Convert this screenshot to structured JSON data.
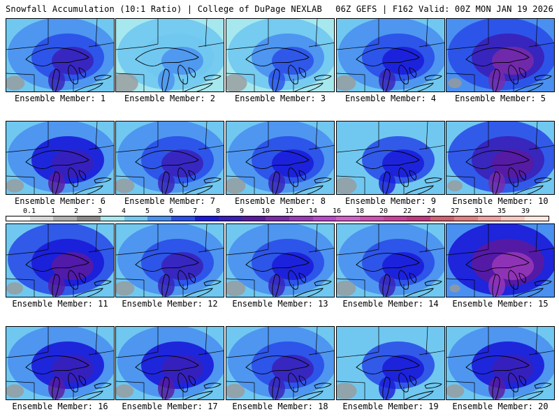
{
  "header": {
    "title": "Snowfall Accumulation (10:1 Ratio) | College of DuPage NEXLAB",
    "run_info": "06Z GEFS | F162 Valid: 00Z MON JAN 19 2026"
  },
  "members": [
    {
      "label": "Ensemble Member: 1",
      "intensity": 0.55
    },
    {
      "label": "Ensemble Member: 2",
      "intensity": 0.3
    },
    {
      "label": "Ensemble Member: 3",
      "intensity": 0.4
    },
    {
      "label": "Ensemble Member: 4",
      "intensity": 0.5
    },
    {
      "label": "Ensemble Member: 5",
      "intensity": 0.75
    },
    {
      "label": "Ensemble Member: 6",
      "intensity": 0.6
    },
    {
      "label": "Ensemble Member: 7",
      "intensity": 0.55
    },
    {
      "label": "Ensemble Member: 8",
      "intensity": 0.5
    },
    {
      "label": "Ensemble Member: 9",
      "intensity": 0.45
    },
    {
      "label": "Ensemble Member: 10",
      "intensity": 0.7
    },
    {
      "label": "Ensemble Member: 11",
      "intensity": 0.65
    },
    {
      "label": "Ensemble Member: 12",
      "intensity": 0.55
    },
    {
      "label": "Ensemble Member: 13",
      "intensity": 0.5
    },
    {
      "label": "Ensemble Member: 14",
      "intensity": 0.5
    },
    {
      "label": "Ensemble Member: 15",
      "intensity": 0.85
    },
    {
      "label": "Ensemble Member: 16",
      "intensity": 0.6
    },
    {
      "label": "Ensemble Member: 17",
      "intensity": 0.6
    },
    {
      "label": "Ensemble Member: 18",
      "intensity": 0.55
    },
    {
      "label": "Ensemble Member: 19",
      "intensity": 0.45
    },
    {
      "label": "Ensemble Member: 20",
      "intensity": 0.6
    }
  ],
  "legend": {
    "ticks": [
      "0.1",
      "1",
      "2",
      "3",
      "4",
      "5",
      "6",
      "7",
      "8",
      "9",
      "10",
      "12",
      "14",
      "16",
      "18",
      "20",
      "22",
      "24",
      "27",
      "31",
      "35",
      "39"
    ],
    "colors": [
      "#ffffff",
      "#d8d8d8",
      "#b0b0b0",
      "#8a8a8a",
      "#a6e8ee",
      "#70c8f0",
      "#4a90f0",
      "#2a4ee8",
      "#1a1ad8",
      "#3a20b8",
      "#5a1aa0",
      "#7a2aa8",
      "#9a38b8",
      "#b848c8",
      "#d060c8",
      "#d050b0",
      "#c84098",
      "#c03880",
      "#d06070",
      "#e08080",
      "#f0a0a0",
      "#f8c8c0",
      "#fde8e0"
    ]
  }
}
